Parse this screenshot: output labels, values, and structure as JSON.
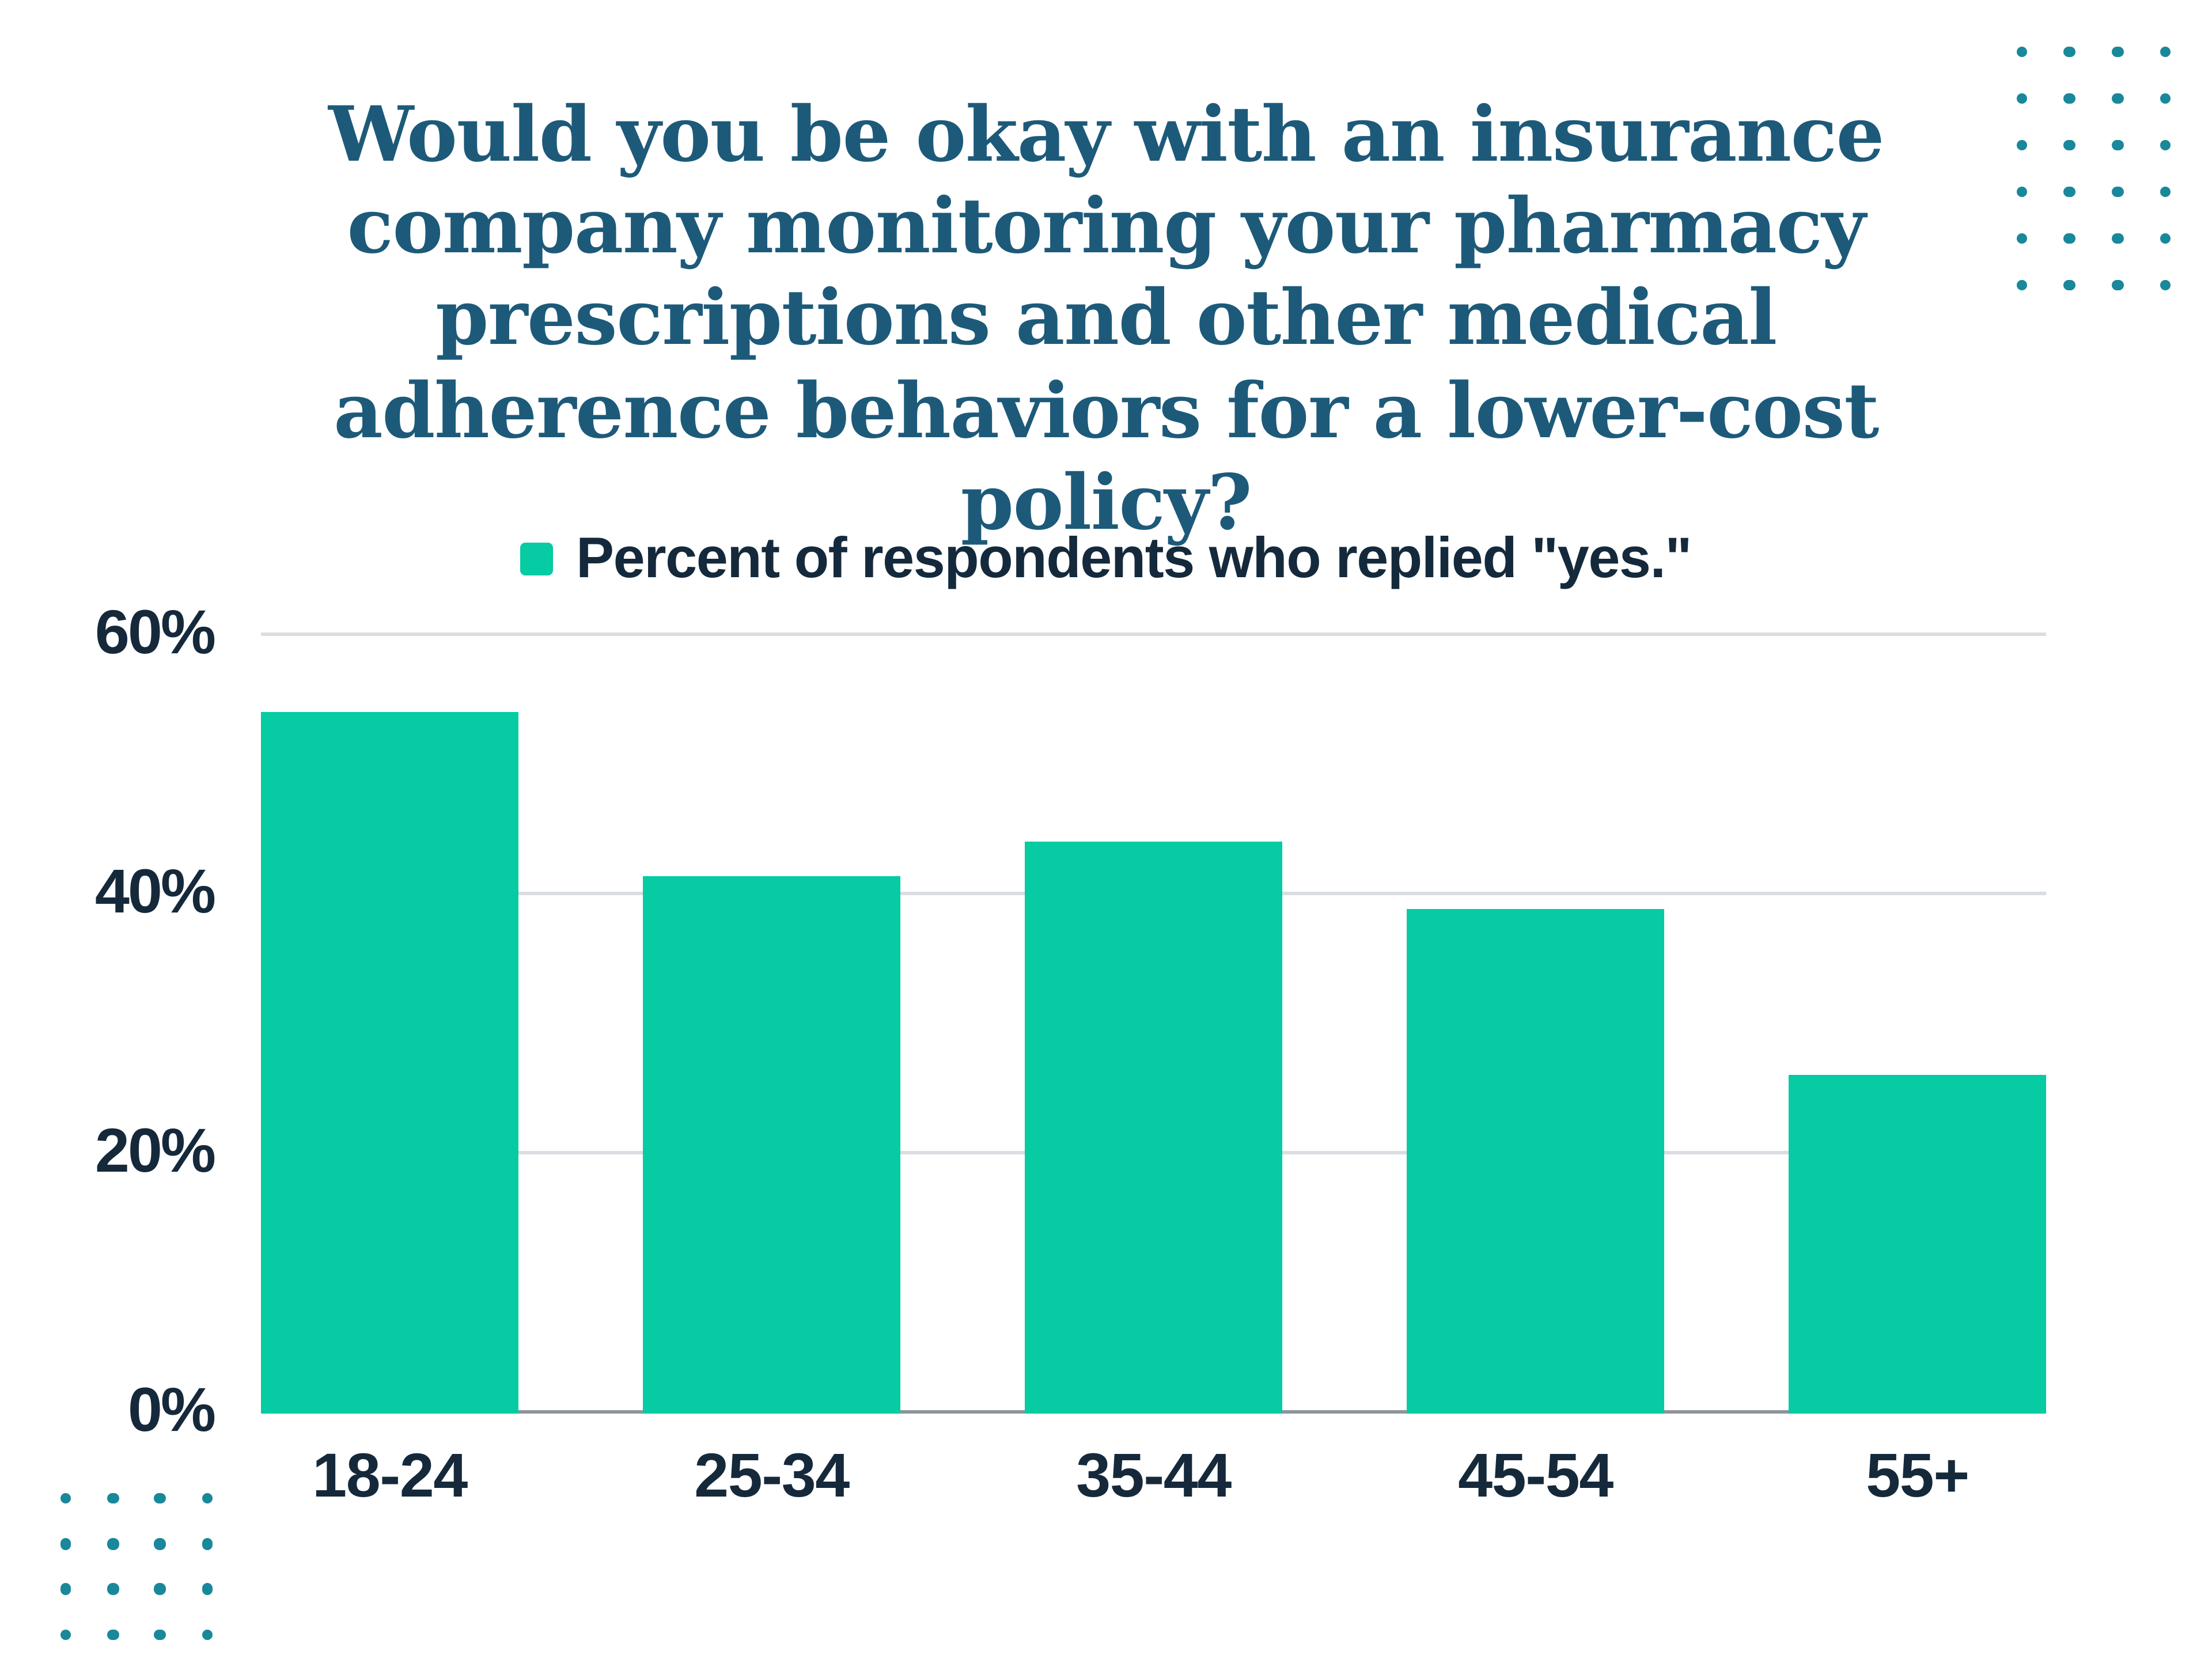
{
  "title": {
    "text": "Would you be okay with an insurance company monitoring your pharmacy prescriptions and other medical adherence behaviors for a lower-cost policy?"
  },
  "legend": {
    "label": "Percent of respondents who replied \"yes.\"",
    "swatch_color": "#06cba3"
  },
  "chart_data": {
    "type": "bar",
    "title": "Would you be okay with an insurance company monitoring your pharmacy prescriptions and other medical adherence behaviors for a lower-cost policy?",
    "categories": [
      "18-24",
      "25-34",
      "35-44",
      "45-54",
      "55+"
    ],
    "series": [
      {
        "name": "Percent of respondents who replied \"yes.\"",
        "values": [
          54.2,
          41.5,
          44.2,
          39.0,
          26.2
        ]
      }
    ],
    "xlabel": "",
    "ylabel": "",
    "ylim": [
      0,
      60
    ],
    "yticks": [
      60,
      40,
      20,
      0
    ],
    "ytick_labels": [
      "60%",
      "40%",
      "20%",
      "0%"
    ],
    "grid": true,
    "legend_position": "top-center",
    "bar_color": "#06cba3"
  },
  "colors": {
    "title_text": "#1d5a7a",
    "label_text": "#15293b",
    "bar": "#06cba3",
    "gridline": "#dadde2",
    "baseline": "#8f949b",
    "decorative_dots": "#19889a",
    "background": "#ffffff"
  },
  "decorations": {
    "dot_grid_top_right": {
      "rows": 6,
      "cols": 4
    },
    "dot_grid_bottom_left": {
      "rows": 4,
      "cols": 4
    }
  }
}
